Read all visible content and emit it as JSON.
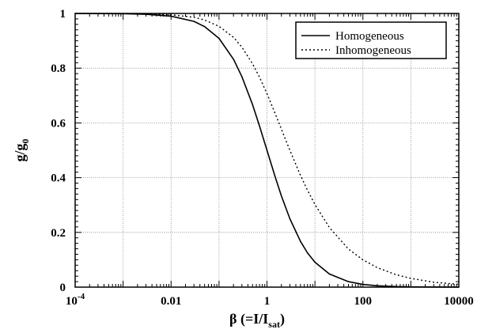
{
  "chart_data": {
    "type": "line",
    "xscale": "log",
    "xlim": [
      0.0001,
      10000
    ],
    "ylim": [
      0,
      1
    ],
    "grid": true,
    "legend_position": "top-right",
    "x_tick_values": [
      0.0001,
      0.01,
      1,
      100,
      10000
    ],
    "x_tick_labels": [
      "10^-4",
      "0.01",
      "1",
      "100",
      "10000"
    ],
    "x_tick_base": "10",
    "x_tick_exponent": "-4",
    "y_tick_values": [
      0,
      0.2,
      0.4,
      0.6,
      0.8,
      1
    ],
    "y_tick_labels": [
      "0",
      "0.2",
      "0.4",
      "0.6",
      "0.8",
      "1"
    ],
    "xlabel": {
      "prefix": "β (=I/I",
      "subscript": "sat",
      "suffix": ")"
    },
    "ylabel": {
      "main": "g/g",
      "subscript": "0"
    },
    "series": [
      {
        "name": "Homogeneous",
        "style": "solid",
        "color": "#000000",
        "x": [
          0.0001,
          0.001,
          0.003,
          0.01,
          0.03,
          0.05,
          0.1,
          0.2,
          0.3,
          0.5,
          0.7,
          1,
          1.5,
          2,
          3,
          5,
          7,
          10,
          20,
          50,
          100,
          200,
          500,
          1000,
          10000
        ],
        "y": [
          1.0,
          0.999,
          0.997,
          0.99,
          0.971,
          0.952,
          0.909,
          0.833,
          0.769,
          0.667,
          0.588,
          0.5,
          0.4,
          0.333,
          0.25,
          0.167,
          0.125,
          0.091,
          0.048,
          0.02,
          0.01,
          0.005,
          0.002,
          0.001,
          0.0001
        ]
      },
      {
        "name": "Inhomogeneous",
        "style": "dotted",
        "color": "#000000",
        "x": [
          0.0001,
          0.001,
          0.01,
          0.03,
          0.05,
          0.1,
          0.2,
          0.3,
          0.5,
          0.7,
          1,
          1.5,
          2,
          3,
          5,
          7,
          10,
          20,
          50,
          100,
          200,
          500,
          1000,
          3000,
          10000
        ],
        "y": [
          1.0,
          1.0,
          0.995,
          0.986,
          0.976,
          0.953,
          0.913,
          0.877,
          0.816,
          0.767,
          0.707,
          0.632,
          0.577,
          0.5,
          0.408,
          0.354,
          0.302,
          0.218,
          0.139,
          0.1,
          0.071,
          0.045,
          0.032,
          0.018,
          0.01
        ]
      }
    ]
  }
}
